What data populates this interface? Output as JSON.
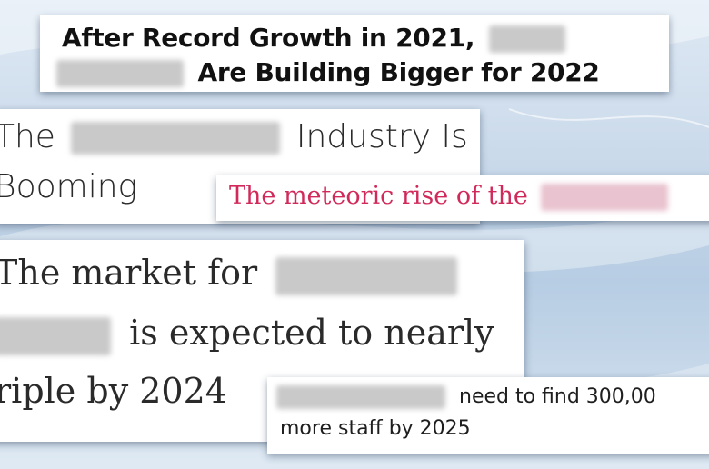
{
  "headlines": {
    "h1": {
      "line1": "After Record Growth in 2021,",
      "line2": "Are Building Bigger for 2022"
    },
    "h2": {
      "line1": "The",
      "line1_tail": "Industry Is",
      "line2": "Booming"
    },
    "h3": {
      "line1": "The meteoric rise of the"
    },
    "h4": {
      "line1": "The market for",
      "line2": "is expected to nearly",
      "line3": "riple by 2024"
    },
    "h5": {
      "line1": "need to find 300,00",
      "line2": "more staff by 2025"
    }
  },
  "colors": {
    "accent_red": "#d12a5a",
    "background": "#c9d9ea",
    "card": "#ffffff"
  }
}
